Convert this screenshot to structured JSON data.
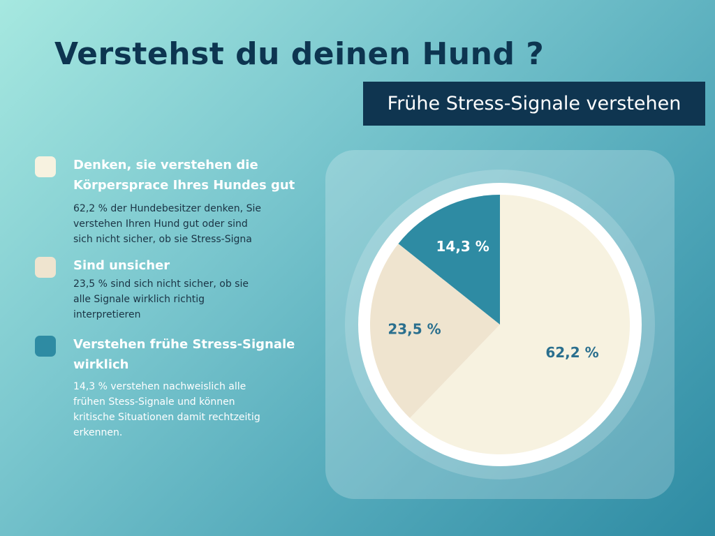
{
  "header": {
    "title": "Verstehst du deinen Hund ?",
    "subtitle": "Frühe Stress-Signale verstehen"
  },
  "legend": [
    {
      "title": "Denken, sie verstehen die Körpersprace Ihres Hundes gut",
      "description": "62,2 % der Hundebesitzer denken, Sie verstehen Ihren Hund gut oder sind sich nicht sicher, ob sie Stress-Signa",
      "color": "#f7f2e0"
    },
    {
      "title": "Sind unsicher",
      "description": "23,5 % sind sich nicht sicher, ob sie alle Signale wirklich richtig interpretieren",
      "color": "#efe4cf"
    },
    {
      "title": "Verstehen frühe Stress-Signale wirklich",
      "description": "14,3 % verstehen nachweislich alle frühen Stess-Signale und können kritische Situationen damit rechtzeitig erkennen.",
      "color": "#2e8ba3"
    }
  ],
  "chart_data": {
    "type": "pie",
    "values": [
      62.2,
      23.5,
      14.3
    ],
    "labels": [
      "62,2 %",
      "23,5 %",
      "14,3 %"
    ],
    "colors": [
      "#f7f2e0",
      "#efe4cf",
      "#2e8ba3"
    ],
    "label_colors": [
      "#2a6f8e",
      "#2a6f8e",
      "#ffffff"
    ],
    "start_angle_deg": 0,
    "direction": "clockwise"
  },
  "colors": {
    "title_text": "#0d3550",
    "subtitle_bg": "#0f3550",
    "legend_desc_dark": "#1a3344",
    "legend_desc_light": "#ffffff"
  }
}
